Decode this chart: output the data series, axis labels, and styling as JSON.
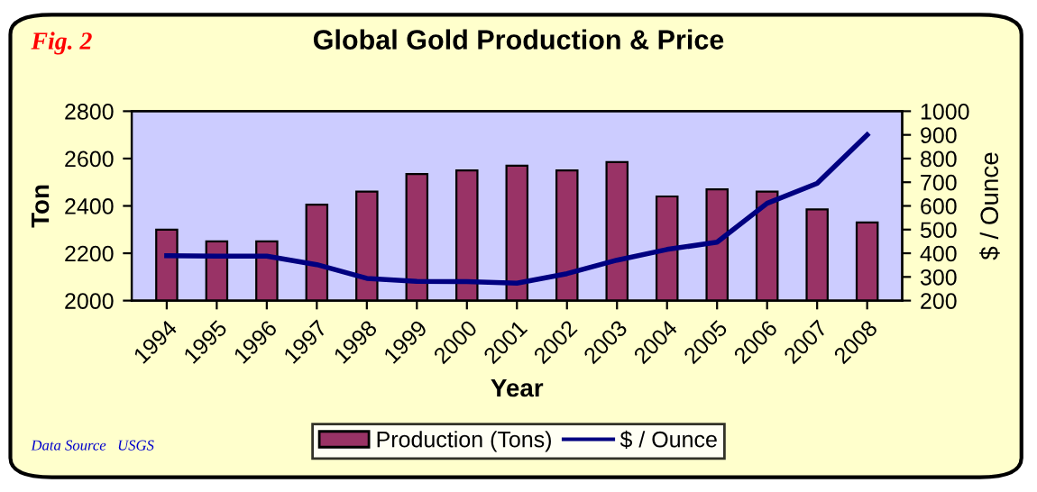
{
  "chart_data": {
    "type": "bar",
    "title": "Global Gold Production & Price",
    "xlabel": "Year",
    "ylabel": "Ton",
    "y2label": "$ / Ounce",
    "categories": [
      "1994",
      "1995",
      "1996",
      "1997",
      "1998",
      "1999",
      "2000",
      "2001",
      "2002",
      "2003",
      "2004",
      "2005",
      "2006",
      "2007",
      "2008"
    ],
    "series": [
      {
        "name": "Production (Tons)",
        "color": "#993366",
        "values": [
          2300,
          2250,
          2250,
          2405,
          2460,
          2535,
          2550,
          2570,
          2550,
          2585,
          2440,
          2470,
          2460,
          2385,
          2330
        ]
      },
      {
        "name": "$ / Ounce",
        "type": "line",
        "axis": "y2",
        "color": "#000080",
        "values": [
          390,
          388,
          388,
          352,
          294,
          281,
          280,
          274,
          314,
          371,
          416,
          447,
          611,
          695,
          900
        ]
      }
    ],
    "ylim": [
      2000,
      2800
    ],
    "yticks": [
      2000,
      2200,
      2400,
      2600,
      2800
    ],
    "y2lim": [
      200,
      1000
    ],
    "y2ticks": [
      200,
      300,
      400,
      500,
      600,
      700,
      800,
      900,
      1000
    ],
    "grid": false,
    "legend": "bottom",
    "annotations": [
      "Fig. 2",
      "Data Source   USGS"
    ]
  }
}
